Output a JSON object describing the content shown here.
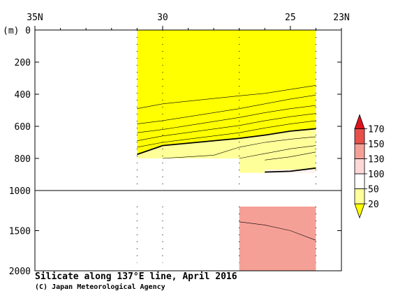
{
  "chart_data": {
    "type": "heatmap",
    "title": "Silicate along 137°E line, April 2016",
    "credit": "(C) Japan Meteorological Agency",
    "x_axis": {
      "tick_labels": [
        {
          "lat": 35,
          "label": "35N"
        },
        {
          "lat": 30,
          "label": "30"
        },
        {
          "lat": 25,
          "label": "25"
        },
        {
          "lat": 23,
          "label": "23N"
        }
      ],
      "range": [
        35,
        23
      ]
    },
    "y_axis": {
      "unit_label": "(m)",
      "upper": {
        "range": [
          0,
          1000
        ],
        "tick_labels": [
          "0",
          "200",
          "400",
          "600",
          "800",
          "1000"
        ],
        "ticks": [
          0,
          200,
          400,
          600,
          800,
          1000
        ]
      },
      "lower": {
        "range": [
          1000,
          2000
        ],
        "tick_labels": [
          "1500",
          "2000"
        ],
        "ticks": [
          1500,
          2000
        ]
      }
    },
    "colorbar": {
      "levels": [
        "20",
        "50",
        "100",
        "130",
        "150",
        "170"
      ],
      "colors": [
        "#ffff00",
        "#ffff99",
        "#ffffff",
        "#ffd7d7",
        "#f5a096",
        "#e8504a",
        "#dc141e"
      ]
    },
    "stations": [
      31.0,
      30.0,
      27.0,
      24.0
    ],
    "regions": [
      {
        "name": "shallow-fill",
        "lat": [
          31.0,
          24.0
        ],
        "depth": [
          0,
          800
        ],
        "color": "#ffff00"
      },
      {
        "name": "deep-fill",
        "lat": [
          27.0,
          24.0
        ],
        "depth": [
          1200,
          2000
        ],
        "color": "#f5a096"
      }
    ],
    "contours": [
      {
        "points": [
          [
            31.0,
            490
          ],
          [
            30.0,
            460
          ],
          [
            27.0,
            410
          ],
          [
            26.0,
            395
          ],
          [
            25.0,
            370
          ],
          [
            24.0,
            345
          ]
        ],
        "bold": false
      },
      {
        "points": [
          [
            31.0,
            585
          ],
          [
            30.0,
            565
          ],
          [
            27.0,
            490
          ],
          [
            26.0,
            460
          ],
          [
            25.0,
            430
          ],
          [
            24.0,
            405
          ]
        ],
        "bold": false
      },
      {
        "points": [
          [
            31.0,
            640
          ],
          [
            30.0,
            620
          ],
          [
            27.0,
            545
          ],
          [
            26.0,
            515
          ],
          [
            25.0,
            490
          ],
          [
            24.0,
            470
          ]
        ],
        "bold": false
      },
      {
        "points": [
          [
            31.0,
            690
          ],
          [
            30.0,
            660
          ],
          [
            27.0,
            595
          ],
          [
            26.0,
            565
          ],
          [
            25.0,
            540
          ],
          [
            24.0,
            520
          ]
        ],
        "bold": false
      },
      {
        "points": [
          [
            31.0,
            730
          ],
          [
            30.0,
            700
          ],
          [
            27.0,
            640
          ],
          [
            26.0,
            610
          ],
          [
            25.0,
            585
          ],
          [
            24.0,
            565
          ]
        ],
        "bold": false
      },
      {
        "points": [
          [
            31.0,
            775
          ],
          [
            30.0,
            720
          ],
          [
            27.0,
            675
          ],
          [
            26.0,
            655
          ],
          [
            25.0,
            630
          ],
          [
            24.0,
            615
          ]
        ],
        "bold": true
      },
      {
        "points": [
          [
            30.0,
            800
          ],
          [
            28.0,
            780
          ],
          [
            27.0,
            730
          ],
          [
            26.0,
            700
          ],
          [
            25.0,
            680
          ],
          [
            24.0,
            665
          ]
        ],
        "bold": false
      },
      {
        "points": [
          [
            27.0,
            800
          ],
          [
            26.0,
            770
          ],
          [
            25.0,
            740
          ],
          [
            24.0,
            720
          ]
        ],
        "bold": false
      },
      {
        "points": [
          [
            26.0,
            810
          ],
          [
            25.0,
            790
          ],
          [
            24.0,
            760
          ]
        ],
        "bold": false
      },
      {
        "points": [
          [
            26.0,
            885
          ],
          [
            25.0,
            880
          ],
          [
            24.0,
            860
          ]
        ],
        "bold": true
      },
      {
        "points": [
          [
            27.0,
            1390
          ],
          [
            26.0,
            1430
          ],
          [
            25.0,
            1500
          ],
          [
            24.0,
            1620
          ]
        ],
        "bold": false
      }
    ]
  }
}
